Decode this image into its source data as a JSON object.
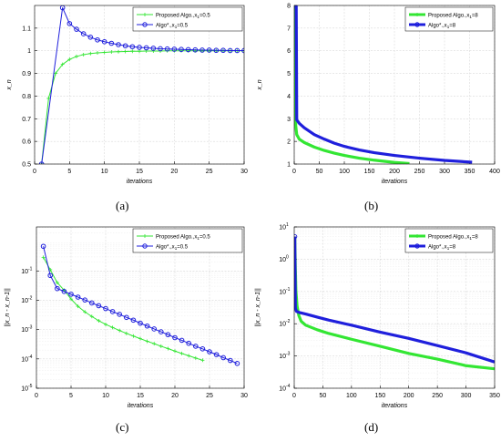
{
  "chart_data": [
    {
      "type": "line",
      "panel": "a",
      "caption": "(a)",
      "xlabel": "iterations",
      "ylabel": "x_n",
      "xlim": [
        0,
        30
      ],
      "ylim": [
        0.5,
        1.2
      ],
      "yscale": "linear",
      "xticks": [
        0,
        5,
        10,
        15,
        20,
        25,
        30
      ],
      "yticks": [
        0.5,
        0.6,
        0.7,
        0.8,
        0.9,
        1,
        1.1
      ],
      "xtick_labels": [
        "0",
        "5",
        "10",
        "15",
        "20",
        "25",
        "30"
      ],
      "ytick_labels": [
        "0.5",
        "0.6",
        "0.7",
        "0.8",
        "0.9",
        "1",
        "1.1"
      ],
      "grid": true,
      "legend_position": "top-right",
      "series": [
        {
          "name": "Proposed Algo.,x",
          "name_sub": "1",
          "name_tail": "=0.5",
          "color": "#33e633",
          "marker": "plus",
          "x": [
            1,
            2,
            3,
            4,
            5,
            6,
            7,
            8,
            9,
            10,
            11,
            12,
            13,
            14,
            15,
            16,
            17,
            18,
            19,
            20,
            21,
            22,
            23,
            24,
            25,
            26,
            27,
            28,
            29,
            30
          ],
          "y": [
            0.5,
            0.79,
            0.9,
            0.94,
            0.962,
            0.975,
            0.983,
            0.988,
            0.991,
            0.993,
            0.995,
            0.996,
            0.997,
            0.998,
            0.998,
            0.999,
            0.999,
            0.999,
            1,
            1,
            1,
            1,
            1,
            1,
            1,
            1,
            1,
            1,
            1,
            1
          ]
        },
        {
          "name": "Algo*.,x",
          "name_sub": "1",
          "name_tail": "=0.5",
          "color": "#1f1fdc",
          "marker": "circle",
          "x": [
            1,
            4,
            5,
            6,
            7,
            8,
            9,
            10,
            11,
            12,
            13,
            14,
            15,
            16,
            17,
            18,
            19,
            20,
            21,
            22,
            23,
            24,
            25,
            26,
            27,
            28,
            29,
            30
          ],
          "y": [
            0.5,
            1.19,
            1.12,
            1.095,
            1.075,
            1.06,
            1.048,
            1.04,
            1.033,
            1.027,
            1.022,
            1.018,
            1.015,
            1.013,
            1.011,
            1.009,
            1.008,
            1.007,
            1.006,
            1.005,
            1.004,
            1.003,
            1.003,
            1.002,
            1.002,
            1.001,
            1.001,
            1.001
          ]
        }
      ]
    },
    {
      "type": "line",
      "panel": "b",
      "caption": "(b)",
      "xlabel": "iterations",
      "ylabel": "x_n",
      "xlim": [
        0,
        400
      ],
      "ylim": [
        1,
        8
      ],
      "yscale": "linear",
      "xticks": [
        0,
        50,
        100,
        150,
        200,
        250,
        300,
        350,
        400
      ],
      "yticks": [
        1,
        2,
        3,
        4,
        5,
        6,
        7,
        8
      ],
      "xtick_labels": [
        "0",
        "50",
        "100",
        "150",
        "200",
        "250",
        "300",
        "350",
        "400"
      ],
      "ytick_labels": [
        "1",
        "2",
        "3",
        "4",
        "5",
        "6",
        "7",
        "8"
      ],
      "grid": true,
      "legend_position": "top-right",
      "series": [
        {
          "name": "Proposed Algo.,x",
          "name_sub": "1",
          "name_tail": "=8",
          "color": "#33e633",
          "marker": "plus",
          "x": [
            1,
            3,
            5,
            10,
            20,
            40,
            60,
            80,
            100,
            130,
            160,
            200,
            230
          ],
          "y": [
            8,
            2.7,
            2.3,
            2.1,
            1.95,
            1.75,
            1.6,
            1.48,
            1.38,
            1.26,
            1.17,
            1.07,
            1.02
          ]
        },
        {
          "name": "Algo*.,x",
          "name_sub": "1",
          "name_tail": "=8",
          "color": "#1f1fdc",
          "marker": "circle",
          "x": [
            1,
            4,
            5,
            10,
            20,
            40,
            60,
            80,
            100,
            130,
            160,
            200,
            250,
            300,
            355
          ],
          "y": [
            8,
            8,
            2.95,
            2.8,
            2.6,
            2.3,
            2.1,
            1.92,
            1.78,
            1.62,
            1.5,
            1.38,
            1.26,
            1.16,
            1.08
          ]
        }
      ]
    },
    {
      "type": "line",
      "panel": "c",
      "caption": "(c)",
      "xlabel": "iterations",
      "ylabel": "||x_n - x_n-1||",
      "xlim": [
        0,
        30
      ],
      "ylim": [
        -5,
        0.5
      ],
      "yscale": "log",
      "xticks": [
        0,
        5,
        10,
        15,
        20,
        25,
        30
      ],
      "yticks": [
        -5,
        -4,
        -3,
        -2,
        -1
      ],
      "xtick_labels": [
        "0",
        "5",
        "10",
        "15",
        "20",
        "25",
        "30"
      ],
      "ytick_labels": [
        "10",
        "10",
        "10",
        "10",
        "10"
      ],
      "ytick_exponents": [
        "-5",
        "-4",
        "-3",
        "-2",
        "-1"
      ],
      "grid": true,
      "legend_position": "top-right",
      "series": [
        {
          "name": "Proposed Algo.,x",
          "name_sub": "1",
          "name_tail": "=0.5",
          "color": "#33e633",
          "marker": "plus",
          "x": [
            1,
            2,
            3,
            4,
            5,
            6,
            7,
            8,
            9,
            10,
            11,
            12,
            13,
            14,
            15,
            16,
            17,
            18,
            19,
            20,
            21,
            22,
            23,
            24
          ],
          "y": [
            0.29,
            0.11,
            0.04,
            0.022,
            0.011,
            0.0062,
            0.004,
            0.0028,
            0.002,
            0.0015,
            0.00118,
            0.00093,
            0.00074,
            0.0006,
            0.00049,
            0.0004,
            0.00033,
            0.00027,
            0.000225,
            0.000185,
            0.000153,
            0.000128,
            0.000107,
            9e-05
          ]
        },
        {
          "name": "Algo*.,x",
          "name_sub": "1",
          "name_tail": "=0.5",
          "color": "#1f1fdc",
          "marker": "circle",
          "x": [
            1,
            2,
            3,
            4,
            5,
            6,
            7,
            8,
            9,
            10,
            11,
            12,
            13,
            14,
            15,
            16,
            17,
            18,
            19,
            20,
            21,
            22,
            23,
            24,
            25,
            26,
            27,
            28,
            29
          ],
          "y": [
            0.69,
            0.07,
            0.025,
            0.02,
            0.016,
            0.0128,
            0.0102,
            0.0081,
            0.0065,
            0.0052,
            0.0041,
            0.0033,
            0.0026,
            0.0021,
            0.00165,
            0.00132,
            0.00105,
            0.00084,
            0.00067,
            0.00053,
            0.00043,
            0.00034,
            0.00027,
            0.00022,
            0.000175,
            0.00014,
            0.00011,
            8.85e-05,
            7e-05
          ]
        }
      ]
    },
    {
      "type": "line",
      "panel": "d",
      "caption": "(d)",
      "xlabel": "iterations",
      "ylabel": "||x_n - x_n-1||",
      "xlim": [
        0,
        350
      ],
      "ylim": [
        -4,
        1
      ],
      "yscale": "log",
      "xticks": [
        0,
        50,
        100,
        150,
        200,
        250,
        300,
        350
      ],
      "yticks": [
        -4,
        -3,
        -2,
        -1,
        0,
        1
      ],
      "xtick_labels": [
        "0",
        "50",
        "100",
        "150",
        "200",
        "250",
        "300",
        "350"
      ],
      "ytick_labels": [
        "10",
        "10",
        "10",
        "10",
        "10",
        "10"
      ],
      "ytick_exponents": [
        "-4",
        "-3",
        "-2",
        "-1",
        "0",
        "1"
      ],
      "grid": true,
      "legend_position": "top-right",
      "series": [
        {
          "name": "Proposed Algo.,x",
          "name_sub": "1",
          "name_tail": "=8",
          "color": "#33e633",
          "marker": "plus",
          "x": [
            1,
            2,
            3,
            5,
            8,
            12,
            20,
            40,
            60,
            100,
            150,
            200,
            250,
            300,
            350
          ],
          "y": [
            5,
            0.5,
            0.1,
            0.035,
            0.018,
            0.012,
            0.009,
            0.0065,
            0.005,
            0.0033,
            0.002,
            0.0012,
            0.0008,
            0.0005,
            0.0004
          ]
        },
        {
          "name": "Algo*.,x",
          "name_sub": "1",
          "name_tail": "=8",
          "color": "#1f1fdc",
          "marker": "circle",
          "x": [
            1,
            2,
            4,
            10,
            20,
            40,
            60,
            100,
            150,
            200,
            250,
            300,
            350
          ],
          "y": [
            5,
            0.03,
            0.024,
            0.022,
            0.02,
            0.016,
            0.013,
            0.009,
            0.0055,
            0.0035,
            0.0021,
            0.00125,
            0.00065
          ]
        }
      ]
    }
  ]
}
